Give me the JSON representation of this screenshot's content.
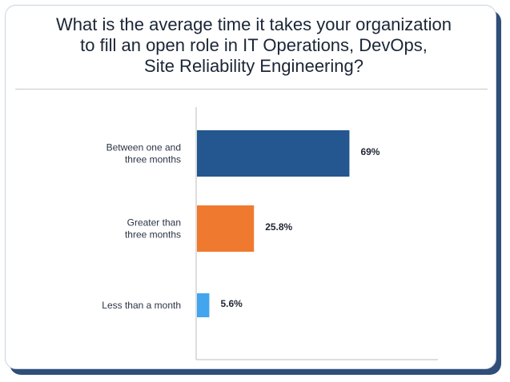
{
  "chart_data": {
    "type": "bar",
    "orientation": "horizontal",
    "title": "What is the average time it takes your organization\nto fill an open role in IT Operations, DevOps,\nSite Reliability Engineering?",
    "categories": [
      [
        "Between one and",
        "three months"
      ],
      [
        "Greater than",
        "three months"
      ],
      [
        "Less than a month"
      ]
    ],
    "values": [
      69,
      25.8,
      5.6
    ],
    "value_labels": [
      "69%",
      "25.8%",
      "5.6%"
    ],
    "colors": [
      "#24568f",
      "#ef7a2f",
      "#42a5ed"
    ],
    "xlim": [
      0,
      100
    ],
    "grid": false,
    "legend": "none"
  }
}
